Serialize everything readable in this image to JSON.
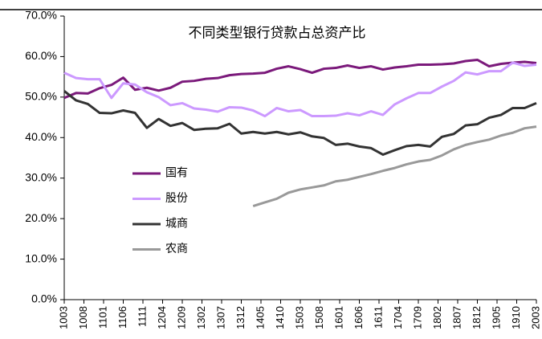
{
  "chart_data": {
    "type": "line",
    "title": "不同类型银行贷款占总资产比",
    "categories": [
      "1003",
      null,
      null,
      null,
      null,
      "1008",
      null,
      null,
      null,
      null,
      "1101",
      null,
      null,
      null,
      null,
      "1106",
      null,
      null,
      null,
      null,
      "1111",
      null,
      null,
      null,
      null,
      "1204",
      null,
      null,
      null,
      null,
      "1209",
      null,
      null,
      null,
      null,
      "1302",
      null,
      null,
      null,
      null,
      "1307",
      null,
      null,
      null,
      null,
      "1312",
      null,
      null,
      null,
      null,
      "1405",
      null,
      null,
      null,
      null,
      "1410",
      null,
      null,
      null,
      null,
      "1503",
      null,
      null,
      null,
      null,
      "1508",
      null,
      null,
      null,
      null,
      "1601",
      null,
      null,
      null,
      null,
      "1606",
      null,
      null,
      null,
      null,
      "1611",
      null,
      null,
      null,
      null,
      "1704",
      null,
      null,
      null,
      null,
      "1709",
      null,
      null,
      null,
      null,
      "1802",
      null,
      null,
      null,
      null,
      "1807",
      null,
      null,
      null,
      null,
      "1812",
      null,
      null,
      null,
      null,
      "1905",
      null,
      null,
      null,
      null,
      "1910",
      null,
      null,
      null,
      null,
      "2003"
    ],
    "connect_gaps": true,
    "series": [
      {
        "name": "国有",
        "color": "#7b1a7b",
        "values": [
          49.8,
          null,
          null,
          51.0,
          null,
          null,
          50.9,
          null,
          null,
          52.2,
          null,
          null,
          53.0,
          null,
          null,
          54.8,
          null,
          null,
          51.8,
          null,
          null,
          52.3,
          null,
          null,
          51.6,
          null,
          null,
          52.3,
          null,
          null,
          53.8,
          null,
          null,
          54.0,
          null,
          null,
          54.5,
          null,
          null,
          54.7,
          null,
          null,
          55.4,
          null,
          null,
          55.7,
          null,
          null,
          55.8,
          null,
          null,
          56.0,
          null,
          null,
          57.0,
          null,
          null,
          57.6,
          null,
          null,
          56.9,
          null,
          null,
          56.0,
          null,
          null,
          57.0,
          null,
          null,
          57.2,
          null,
          null,
          57.8,
          null,
          null,
          57.2,
          null,
          null,
          57.6,
          null,
          null,
          56.8,
          null,
          null,
          57.3,
          null,
          null,
          57.6,
          null,
          null,
          58.0,
          null,
          null,
          58.0,
          null,
          null,
          58.1,
          null,
          null,
          58.3,
          null,
          null,
          58.9,
          null,
          null,
          59.2,
          null,
          null,
          57.6,
          null,
          null,
          58.2,
          null,
          null,
          58.5,
          null,
          null,
          58.7,
          null,
          null,
          58.4
        ]
      },
      {
        "name": "股份",
        "color": "#cc99ff",
        "values": [
          56.0,
          null,
          null,
          54.7,
          null,
          null,
          54.4,
          null,
          null,
          54.4,
          null,
          null,
          49.8,
          null,
          null,
          53.4,
          null,
          null,
          53.1,
          null,
          null,
          51.2,
          null,
          null,
          50.0,
          null,
          null,
          48.0,
          null,
          null,
          48.5,
          null,
          null,
          47.2,
          null,
          null,
          46.9,
          null,
          null,
          46.4,
          null,
          null,
          47.5,
          null,
          null,
          47.4,
          null,
          null,
          46.7,
          null,
          null,
          45.3,
          null,
          null,
          47.3,
          null,
          null,
          46.5,
          null,
          null,
          46.8,
          null,
          null,
          45.3,
          null,
          null,
          45.3,
          null,
          null,
          45.4,
          null,
          null,
          46.0,
          null,
          null,
          45.5,
          null,
          null,
          46.5,
          null,
          null,
          45.6,
          null,
          null,
          48.2,
          null,
          null,
          49.7,
          null,
          null,
          51.0,
          null,
          null,
          51.0,
          null,
          null,
          52.6,
          null,
          null,
          54.0,
          null,
          null,
          56.1,
          null,
          null,
          55.6,
          null,
          null,
          56.4,
          null,
          null,
          56.4,
          null,
          null,
          58.5,
          null,
          null,
          57.7,
          null,
          null,
          58.0
        ]
      },
      {
        "name": "城商",
        "color": "#333333",
        "values": [
          51.5,
          null,
          null,
          49.2,
          null,
          null,
          48.3,
          null,
          null,
          46.1,
          null,
          null,
          46.0,
          null,
          null,
          46.7,
          null,
          null,
          46.1,
          null,
          null,
          42.4,
          null,
          null,
          44.6,
          null,
          null,
          42.9,
          null,
          null,
          43.6,
          null,
          null,
          41.9,
          null,
          null,
          42.2,
          null,
          null,
          42.3,
          null,
          null,
          43.4,
          null,
          null,
          41.0,
          null,
          null,
          41.4,
          null,
          null,
          41.0,
          null,
          null,
          41.4,
          null,
          null,
          40.8,
          null,
          null,
          41.3,
          null,
          null,
          40.3,
          null,
          null,
          39.9,
          null,
          null,
          38.2,
          null,
          null,
          38.5,
          null,
          null,
          37.8,
          null,
          null,
          37.4,
          null,
          null,
          35.8,
          null,
          null,
          36.9,
          null,
          null,
          37.9,
          null,
          null,
          38.2,
          null,
          null,
          37.8,
          null,
          null,
          40.2,
          null,
          null,
          40.9,
          null,
          null,
          43.0,
          null,
          null,
          43.3,
          null,
          null,
          44.9,
          null,
          null,
          45.6,
          null,
          null,
          47.3,
          null,
          null,
          47.3,
          null,
          null,
          48.5
        ]
      },
      {
        "name": "农商",
        "color": "#999999",
        "values": [
          null,
          null,
          null,
          null,
          null,
          null,
          null,
          null,
          null,
          null,
          null,
          null,
          null,
          null,
          null,
          null,
          null,
          null,
          null,
          null,
          null,
          null,
          null,
          null,
          null,
          null,
          null,
          null,
          null,
          null,
          null,
          null,
          null,
          null,
          null,
          null,
          null,
          null,
          null,
          null,
          null,
          null,
          null,
          null,
          null,
          null,
          null,
          null,
          23.1,
          null,
          null,
          24.0,
          null,
          null,
          24.9,
          null,
          null,
          26.4,
          null,
          null,
          27.2,
          null,
          null,
          27.7,
          null,
          null,
          28.2,
          null,
          null,
          29.2,
          null,
          null,
          29.6,
          null,
          null,
          30.3,
          null,
          null,
          31.0,
          null,
          null,
          31.8,
          null,
          null,
          32.5,
          null,
          null,
          33.4,
          null,
          null,
          34.1,
          null,
          null,
          34.5,
          null,
          null,
          35.6,
          null,
          null,
          37.1,
          null,
          null,
          38.2,
          null,
          null,
          38.9,
          null,
          null,
          39.5,
          null,
          null,
          40.5,
          null,
          null,
          41.2,
          null,
          null,
          42.3,
          null,
          null,
          42.7
        ]
      }
    ],
    "ylim": [
      0,
      70
    ],
    "yticks": [
      {
        "value": 0,
        "label": "0.0%"
      },
      {
        "value": 10,
        "label": "10.0%"
      },
      {
        "value": 20,
        "label": "20.0%"
      },
      {
        "value": 30,
        "label": "30.0%"
      },
      {
        "value": 40,
        "label": "40.0%"
      },
      {
        "value": 50,
        "label": "50.0%"
      },
      {
        "value": 60,
        "label": "60.0%"
      },
      {
        "value": 70,
        "label": "70.0%"
      }
    ],
    "grid": false
  }
}
